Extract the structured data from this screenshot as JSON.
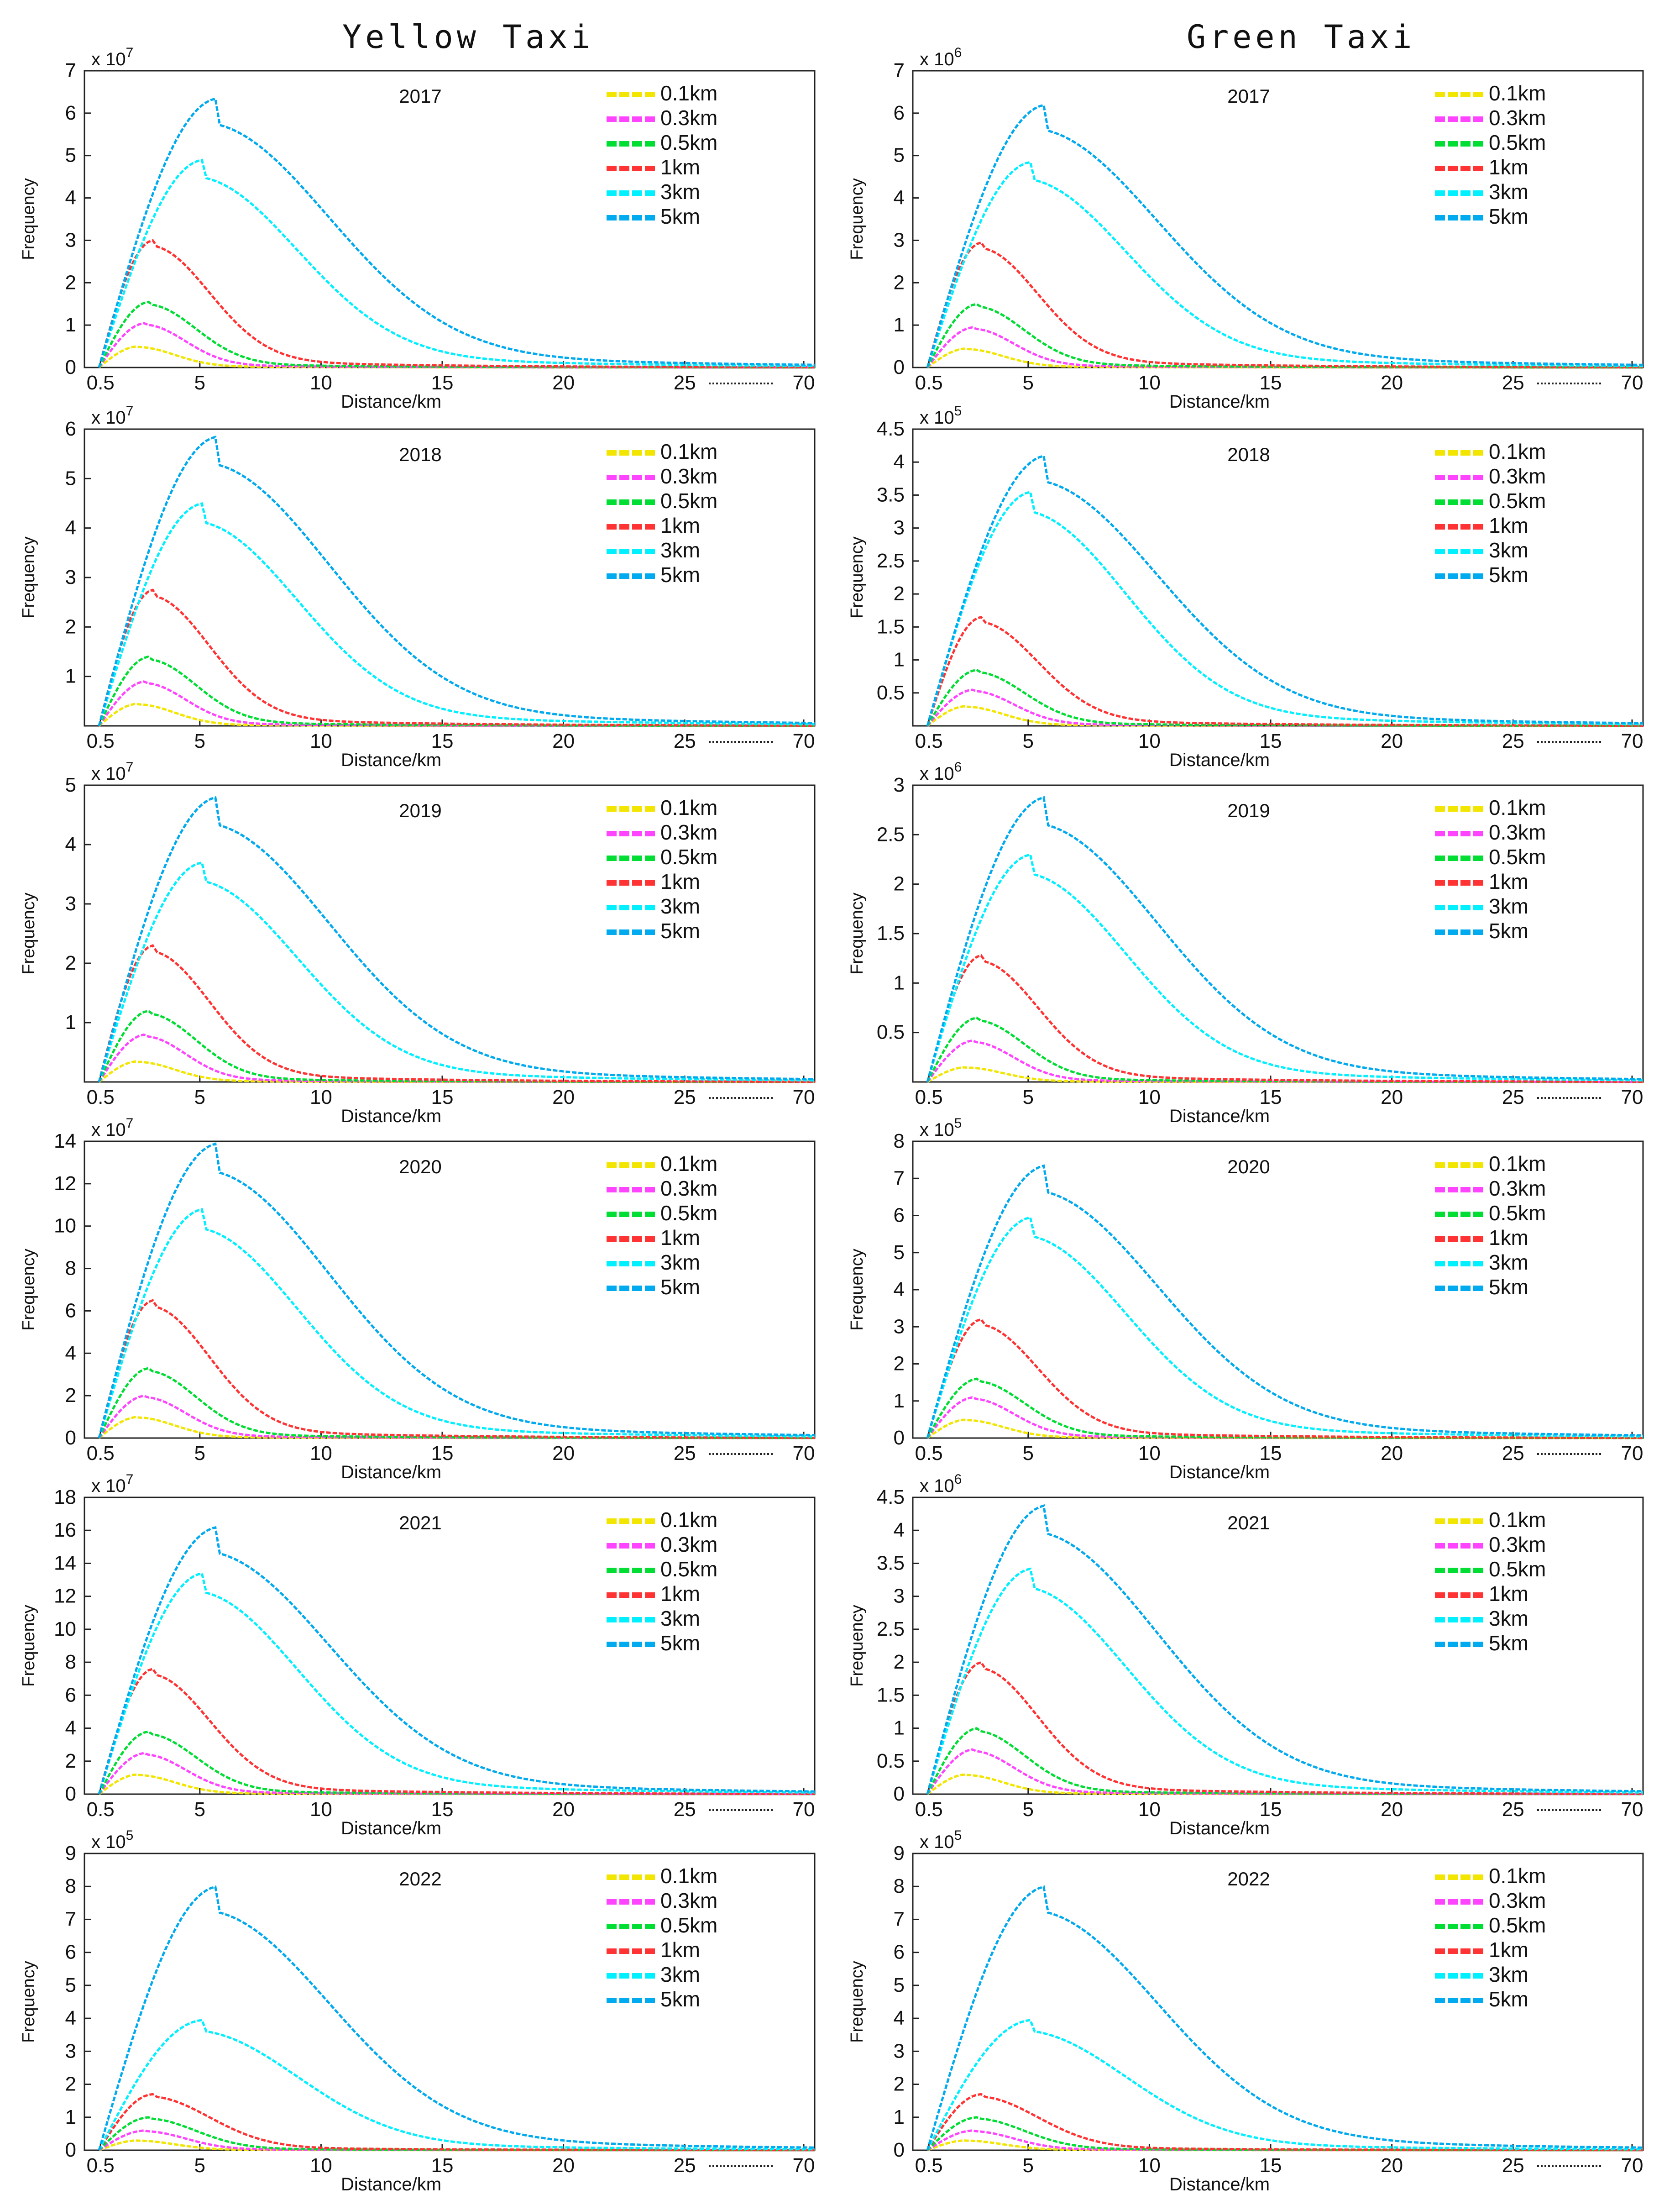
{
  "columns": [
    {
      "title": "Yellow Taxi"
    },
    {
      "title": "Green Taxi"
    }
  ],
  "legend": {
    "labels": [
      "0.1km",
      "0.3km",
      "0.5km",
      "1km",
      "3km",
      "5km"
    ],
    "colors": [
      "#f2e600",
      "#ff44ff",
      "#00dd33",
      "#ff3333",
      "#00f0ff",
      "#00aaee"
    ]
  },
  "xlabel": "Distance/km",
  "ylabel": "Frequency",
  "xticks": [
    "0.5",
    "5",
    "10",
    "15",
    "20",
    "25",
    "70"
  ],
  "chart_data": [
    {
      "type": "line",
      "col": 0,
      "title": "2017",
      "multiplier": "x 10",
      "exponent": "7",
      "ymax": 7,
      "yticks": [
        "0",
        "1",
        "2",
        "3",
        "4",
        "5",
        "6",
        "7"
      ],
      "peaks": {
        "0.1km": 0.5,
        "0.3km": 1.05,
        "0.5km": 1.55,
        "1km": 3.0,
        "3km": 4.9,
        "5km": 6.35
      }
    },
    {
      "type": "line",
      "col": 1,
      "title": "2017",
      "multiplier": "x 10",
      "exponent": "6",
      "ymax": 7,
      "yticks": [
        "0",
        "1",
        "2",
        "3",
        "4",
        "5",
        "6",
        "7"
      ],
      "peaks": {
        "0.1km": 0.45,
        "0.3km": 0.95,
        "0.5km": 1.5,
        "1km": 2.95,
        "3km": 4.85,
        "5km": 6.2
      }
    },
    {
      "type": "line",
      "col": 0,
      "title": "2018",
      "multiplier": "x 10",
      "exponent": "7",
      "ymax": 6,
      "yticks": [
        "1",
        "2",
        "3",
        "4",
        "5",
        "6"
      ],
      "peaks": {
        "0.1km": 0.45,
        "0.3km": 0.9,
        "0.5km": 1.4,
        "1km": 2.75,
        "3km": 4.5,
        "5km": 5.85
      }
    },
    {
      "type": "line",
      "col": 1,
      "title": "2018",
      "multiplier": "x 10",
      "exponent": "5",
      "ymax": 4.5,
      "yticks": [
        "0.5",
        "1",
        "1.5",
        "2",
        "2.5",
        "3",
        "3.5",
        "4",
        "4.5"
      ],
      "peaks": {
        "0.1km": 0.3,
        "0.3km": 0.55,
        "0.5km": 0.85,
        "1km": 1.65,
        "3km": 3.55,
        "5km": 4.1
      }
    },
    {
      "type": "line",
      "col": 0,
      "title": "2019",
      "multiplier": "x 10",
      "exponent": "7",
      "ymax": 5,
      "yticks": [
        "1",
        "2",
        "3",
        "4",
        "5"
      ],
      "peaks": {
        "0.1km": 0.35,
        "0.3km": 0.8,
        "0.5km": 1.2,
        "1km": 2.3,
        "3km": 3.7,
        "5km": 4.8
      }
    },
    {
      "type": "line",
      "col": 1,
      "title": "2019",
      "multiplier": "x 10",
      "exponent": "6",
      "ymax": 3,
      "yticks": [
        "0.5",
        "1",
        "1.5",
        "2",
        "2.5",
        "3"
      ],
      "peaks": {
        "0.1km": 0.15,
        "0.3km": 0.42,
        "0.5km": 0.65,
        "1km": 1.28,
        "3km": 2.3,
        "5km": 2.88
      }
    },
    {
      "type": "line",
      "col": 0,
      "title": "2020",
      "multiplier": "x 10",
      "exponent": "7",
      "ymax": 14,
      "yticks": [
        "0",
        "2",
        "4",
        "6",
        "8",
        "10",
        "12",
        "14"
      ],
      "peaks": {
        "0.1km": 1.0,
        "0.3km": 2.0,
        "0.5km": 3.3,
        "1km": 6.5,
        "3km": 10.8,
        "5km": 13.9
      }
    },
    {
      "type": "line",
      "col": 1,
      "title": "2020",
      "multiplier": "x 10",
      "exponent": "5",
      "ymax": 8,
      "yticks": [
        "0",
        "1",
        "2",
        "3",
        "4",
        "5",
        "6",
        "7",
        "8"
      ],
      "peaks": {
        "0.1km": 0.5,
        "0.3km": 1.1,
        "0.5km": 1.6,
        "1km": 3.2,
        "3km": 5.95,
        "5km": 7.35
      }
    },
    {
      "type": "line",
      "col": 0,
      "title": "2021",
      "multiplier": "x 10",
      "exponent": "7",
      "ymax": 18,
      "yticks": [
        "0",
        "2",
        "4",
        "6",
        "8",
        "10",
        "12",
        "14",
        "16",
        "18"
      ],
      "peaks": {
        "0.1km": 1.2,
        "0.3km": 2.5,
        "0.5km": 3.8,
        "1km": 7.6,
        "3km": 13.4,
        "5km": 16.2
      }
    },
    {
      "type": "line",
      "col": 1,
      "title": "2021",
      "multiplier": "x 10",
      "exponent": "6",
      "ymax": 4.5,
      "yticks": [
        "0",
        "0.5",
        "1",
        "1.5",
        "2",
        "2.5",
        "3",
        "3.5",
        "4",
        "4.5"
      ],
      "peaks": {
        "0.1km": 0.3,
        "0.3km": 0.68,
        "0.5km": 1.0,
        "1km": 2.0,
        "3km": 3.42,
        "5km": 4.38
      }
    },
    {
      "type": "line",
      "col": 0,
      "title": "2022",
      "multiplier": "x 10",
      "exponent": "5",
      "ymax": 9,
      "yticks": [
        "0",
        "1",
        "2",
        "3",
        "4",
        "5",
        "6",
        "7",
        "8",
        "9"
      ],
      "peaks": {
        "0.1km": 0.3,
        "0.3km": 0.6,
        "0.5km": 1.0,
        "1km": 1.7,
        "3km": 3.95,
        "5km": 8.0
      }
    },
    {
      "type": "line",
      "col": 1,
      "title": "2022",
      "multiplier": "x 10",
      "exponent": "5",
      "ymax": 9,
      "yticks": [
        "0",
        "1",
        "2",
        "3",
        "4",
        "5",
        "6",
        "7",
        "8",
        "9"
      ],
      "peaks": {
        "0.1km": 0.3,
        "0.3km": 0.6,
        "0.5km": 1.0,
        "1km": 1.7,
        "3km": 3.95,
        "5km": 8.0
      }
    }
  ]
}
